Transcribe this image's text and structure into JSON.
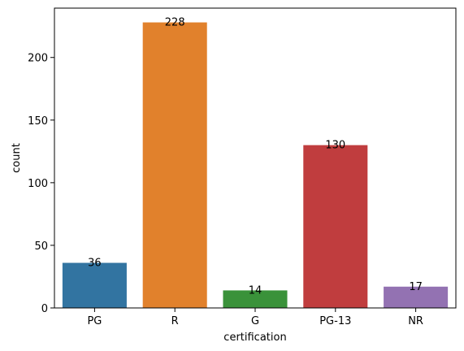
{
  "chart_data": {
    "type": "bar",
    "categories": [
      "PG",
      "R",
      "G",
      "PG-13",
      "NR"
    ],
    "values": [
      36,
      228,
      14,
      130,
      17
    ],
    "data_labels": [
      "36",
      "228",
      "14",
      "130",
      "17"
    ],
    "colors": [
      "#3274a1",
      "#e1812c",
      "#3a923a",
      "#c03d3e",
      "#9372b2"
    ],
    "title": "",
    "xlabel": "certification",
    "ylabel": "count",
    "ylim": [
      0,
      239.4
    ],
    "yticks": [
      0,
      50,
      100,
      150,
      200
    ],
    "ytick_labels": [
      "0",
      "50",
      "100",
      "150",
      "200"
    ],
    "grid": false,
    "legend": "none"
  }
}
